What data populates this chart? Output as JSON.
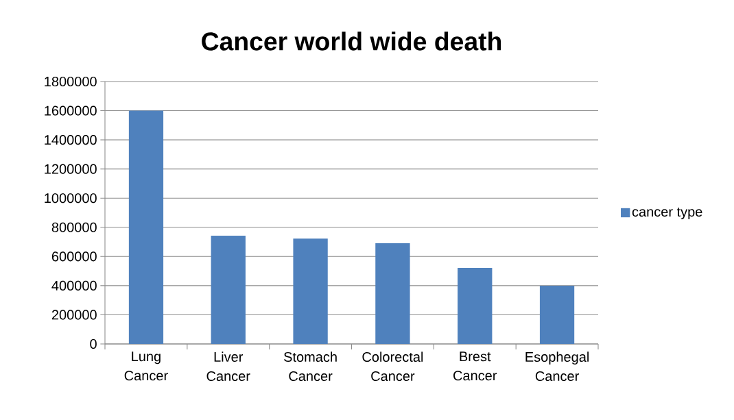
{
  "chart_data": {
    "type": "bar",
    "title": "Cancer world wide death",
    "categories": [
      "Lung Cancer",
      "Liver Cancer",
      "Stomach Cancer",
      "Colorectal Cancer",
      "Brest Cancer",
      "Esophegal Cancer"
    ],
    "series": [
      {
        "name": "cancer type",
        "color": "#4f81bd",
        "values": [
          1600000,
          742000,
          722000,
          691000,
          522000,
          400000
        ]
      }
    ],
    "ylim": [
      0,
      1800000
    ],
    "yticks": [
      0,
      200000,
      400000,
      600000,
      800000,
      1000000,
      1200000,
      1400000,
      1600000,
      1800000
    ],
    "grid": "y",
    "legend": "right"
  }
}
